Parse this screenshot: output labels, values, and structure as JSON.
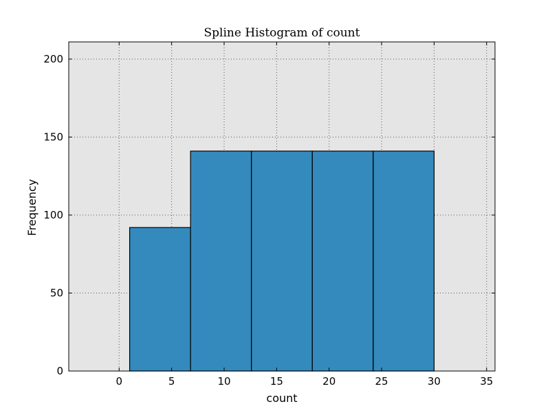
{
  "chart_data": {
    "type": "bar",
    "title": "Spline Histogram of count",
    "xlabel": "count",
    "ylabel": "Frequency",
    "bins": [
      {
        "x0": 1.0,
        "x1": 6.8,
        "value": 92
      },
      {
        "x0": 6.8,
        "x1": 12.6,
        "value": 141
      },
      {
        "x0": 12.6,
        "x1": 18.4,
        "value": 141
      },
      {
        "x0": 18.4,
        "x1": 24.2,
        "value": 141
      },
      {
        "x0": 24.2,
        "x1": 30.0,
        "value": 141
      }
    ],
    "xlim": [
      -4.8,
      35.8
    ],
    "ylim": [
      0,
      211
    ],
    "xticks": [
      0,
      5,
      10,
      15,
      20,
      25,
      30,
      35
    ],
    "yticks": [
      0,
      50,
      100,
      150,
      200
    ],
    "grid": true,
    "colors": {
      "plot_background": "#e5e5e5",
      "bar_fill": "#348abd",
      "bar_edge": "#000000",
      "grid": "#555555"
    }
  }
}
